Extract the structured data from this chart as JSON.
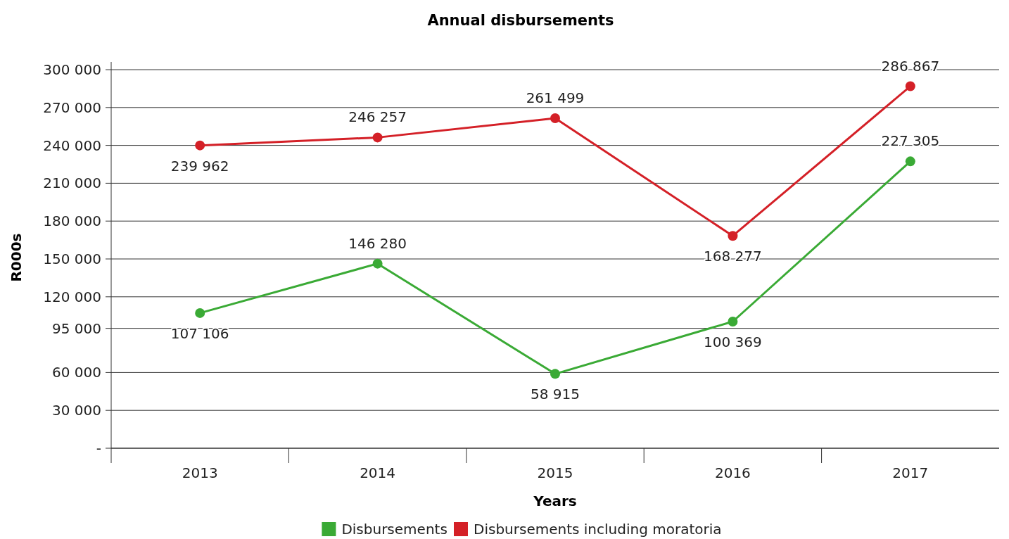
{
  "chart_data": {
    "type": "line",
    "title": "Annual disbursements",
    "xlabel": "Years",
    "ylabel": "R000s",
    "categories": [
      "2013",
      "2014",
      "2015",
      "2016",
      "2017"
    ],
    "series": [
      {
        "name": "Disbursements",
        "color": "#3aaa35",
        "values": [
          107106,
          146280,
          58915,
          100369,
          227305
        ],
        "value_labels": [
          "107 106",
          "146 280",
          "58 915",
          "100 369",
          "227 305"
        ]
      },
      {
        "name": "Disbursements including moratoria",
        "color": "#d42027",
        "values": [
          239962,
          246257,
          261499,
          168277,
          286867
        ],
        "value_labels": [
          "239 962",
          "246 257",
          "261 499",
          "168 277",
          "286 867"
        ]
      }
    ],
    "ylim": [
      0,
      300000
    ],
    "yticks": [
      {
        "value": 0,
        "label": "-"
      },
      {
        "value": 30000,
        "label": "30 000"
      },
      {
        "value": 60000,
        "label": "60 000"
      },
      {
        "value": 95000,
        "label": "95 000"
      },
      {
        "value": 120000,
        "label": "120 000"
      },
      {
        "value": 150000,
        "label": "150 000"
      },
      {
        "value": 180000,
        "label": "180 000"
      },
      {
        "value": 210000,
        "label": "210 000"
      },
      {
        "value": 240000,
        "label": "240 000"
      },
      {
        "value": 270000,
        "label": "270 000"
      },
      {
        "value": 300000,
        "label": "300 000"
      }
    ],
    "grid": "y",
    "legend": "bottom",
    "marker": "circle",
    "line_style": "solid"
  }
}
